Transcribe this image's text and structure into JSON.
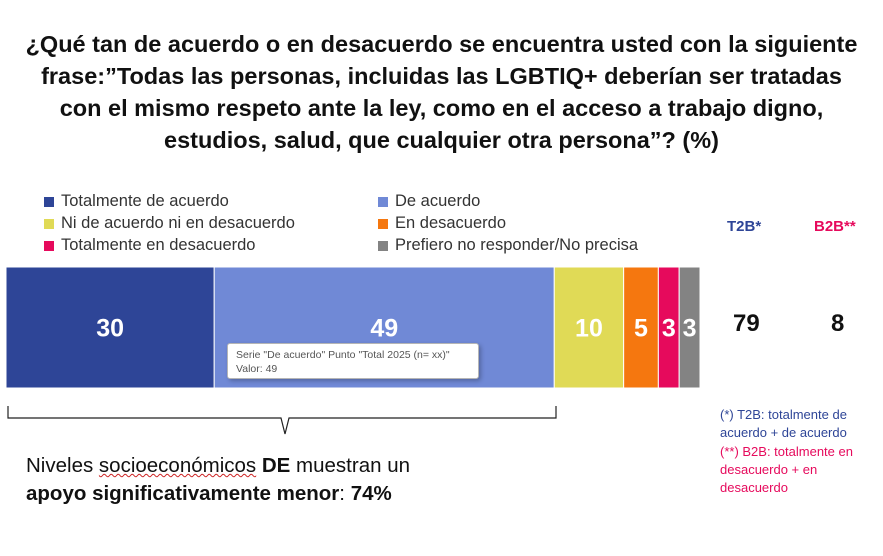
{
  "title": "¿Qué tan de acuerdo o en desacuerdo se encuentra usted con la siguiente frase:”Todas las personas, incluidas las LGBTIQ+ deberían ser tratadas con el mismo respeto ante la ley, como en el acceso a trabajo digno, estudios, salud, que cualquier otra persona”?  (%)",
  "colors": {
    "totalmente_de_acuerdo": "#2E4597",
    "de_acuerdo": "#7089D6",
    "ni_ni": "#E0DA56",
    "en_desacuerdo": "#F5770F",
    "totalmente_en_desacuerdo": "#E60A5C",
    "no_precisa": "#838383",
    "t2b": "#2E4597",
    "b2b": "#E60A5C"
  },
  "chart_data": {
    "type": "bar",
    "orientation": "horizontal",
    "stacked": true,
    "categories": [
      "Total 2025 (n= xx)"
    ],
    "series": [
      {
        "name": "Totalmente de acuerdo",
        "values": [
          30
        ]
      },
      {
        "name": "De acuerdo",
        "values": [
          49
        ]
      },
      {
        "name": "Ni de acuerdo ni en desacuerdo",
        "values": [
          10
        ]
      },
      {
        "name": "En desacuerdo",
        "values": [
          5
        ]
      },
      {
        "name": "Totalmente en desacuerdo",
        "values": [
          3
        ]
      },
      {
        "name": "Prefiero no responder/No precisa",
        "values": [
          3
        ]
      }
    ],
    "xlim": [
      0,
      100
    ],
    "legend_position": "top"
  },
  "kpis": {
    "t2b_label": "T2B*",
    "t2b_value": "79",
    "b2b_label": "B2B**",
    "b2b_value": "8"
  },
  "tooltip": {
    "line1": "Serie \"De acuerdo\" Punto \"Total 2025 (n= xx)\"",
    "line2": "Valor: 49"
  },
  "note": {
    "part1": "Niveles ",
    "part2": "socioeconómicos",
    "part3": " ",
    "part4": "DE",
    "part5": " muestran un ",
    "part6": "apoyo significativamente menor",
    "part7": ": ",
    "part8": "74%"
  },
  "footnotes": {
    "t2b": "(*) T2B: totalmente de acuerdo + de acuerdo",
    "b2b": "(**) B2B: totalmente en desacuerdo + en desacuerdo"
  }
}
